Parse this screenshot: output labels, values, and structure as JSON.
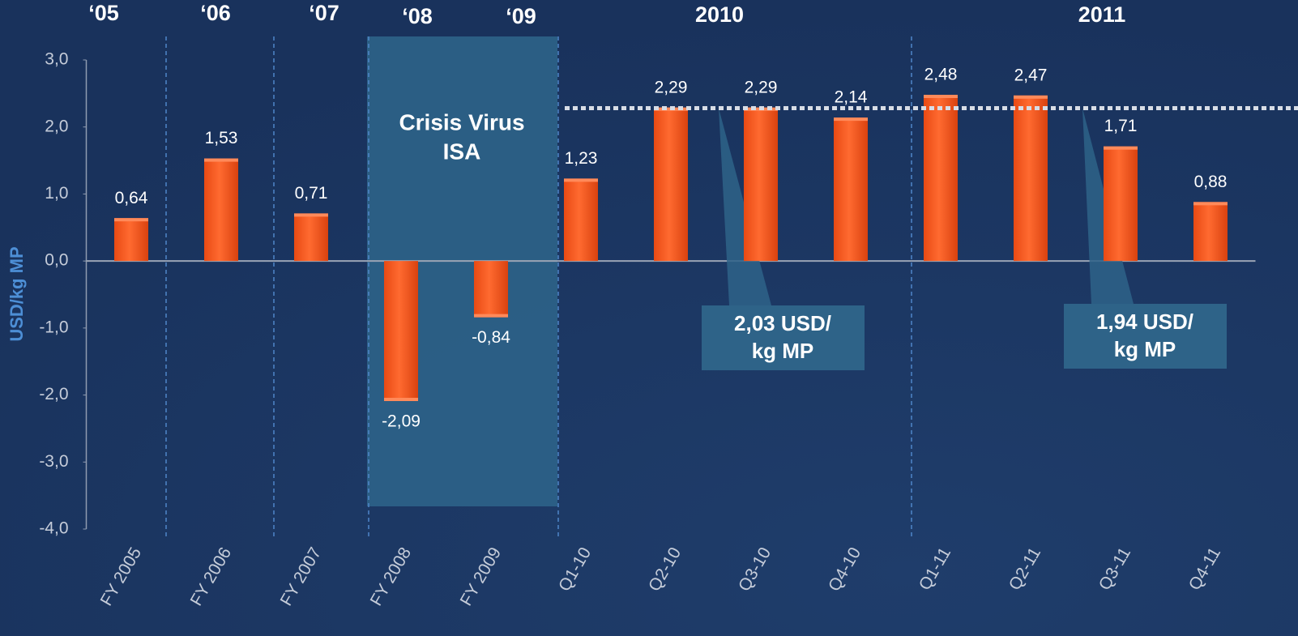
{
  "chart_data": {
    "type": "bar",
    "y_label": "USD/kg MP",
    "categories": [
      "FY 2005",
      "FY 2006",
      "FY 2007",
      "FY 2008",
      "FY 2009",
      "Q1-10",
      "Q2-10",
      "Q3-10",
      "Q4-10",
      "Q1-11",
      "Q2-11",
      "Q3-11",
      "Q4-11"
    ],
    "values": [
      0.64,
      1.53,
      0.71,
      -2.09,
      -0.84,
      1.23,
      2.29,
      2.29,
      2.14,
      2.48,
      2.47,
      1.71,
      0.88
    ],
    "value_labels": [
      "0,64",
      "1,53",
      "0,71",
      "-2,09",
      "-0,84",
      "1,23",
      "2,29",
      "2,29",
      "2,14",
      "2,48",
      "2,47",
      "1,71",
      "0,88"
    ],
    "color": "#ff5722",
    "ylim": [
      -4,
      3
    ],
    "yticks": [
      {
        "value": 3,
        "label": "3,0"
      },
      {
        "value": 2,
        "label": "2,0"
      },
      {
        "value": 1,
        "label": "1,0"
      },
      {
        "value": 0,
        "label": "0,0"
      },
      {
        "value": -1,
        "label": "-1,0"
      },
      {
        "value": -2,
        "label": "-2,0"
      },
      {
        "value": -3,
        "label": "-3,0"
      },
      {
        "value": -4,
        "label": "-4,0"
      }
    ],
    "reference_line": 2.28,
    "period_labels": [
      "‘05",
      "‘06",
      "‘07",
      "‘08",
      "‘09",
      "2010",
      "2011"
    ],
    "crisis_label": [
      "Crisis Virus",
      "ISA"
    ],
    "callouts": [
      [
        "2,03 USD/",
        "kg MP"
      ],
      [
        "1,94 USD/",
        "kg MP"
      ]
    ]
  }
}
